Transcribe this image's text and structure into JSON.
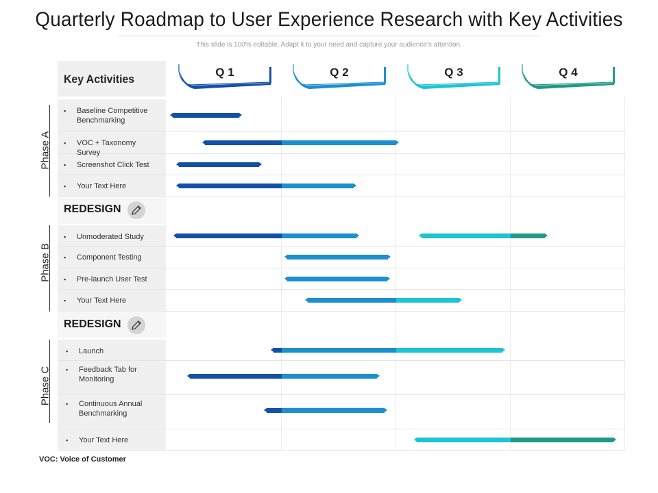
{
  "title": "Quarterly Roadmap to User Experience Research with Key Activities",
  "subtitle": "This slide is 100% editable. Adapt it to your need and capture your audience's attention.",
  "header": {
    "key_activities": "Key Activities"
  },
  "quarters": [
    {
      "label": "Q 1",
      "color": "#1550a8"
    },
    {
      "label": "Q 2",
      "color": "#1c8fd0"
    },
    {
      "label": "Q 3",
      "color": "#1cc4d4"
    },
    {
      "label": "Q 4",
      "color": "#1f9a85"
    }
  ],
  "redesign_label": "REDESIGN",
  "phases": [
    {
      "label": "Phase A"
    },
    {
      "label": "Phase B"
    },
    {
      "label": "Phase C"
    }
  ],
  "activities": [
    {
      "label": "Baseline Competitive Benchmarking",
      "start": 0.05,
      "end": 0.63
    },
    {
      "label": "VOC + Taxonomy Survey",
      "start": 0.33,
      "end": 2.0
    },
    {
      "label": "Screenshot Click Test",
      "start": 0.1,
      "end": 0.8
    },
    {
      "label": "Your Text Here",
      "start": 0.1,
      "end": 1.63
    },
    {
      "label": "Unmoderated Study",
      "start": 0.08,
      "end": 1.65,
      "start2": 2.22,
      "end2": 3.3
    },
    {
      "label": "Component Testing",
      "start": 1.05,
      "end": 1.93
    },
    {
      "label": "Pre-launch User Test",
      "start": 1.05,
      "end": 1.92
    },
    {
      "label": "Your Text Here",
      "start": 1.23,
      "end": 2.55
    },
    {
      "label": "Launch",
      "start": 0.93,
      "end": 2.93
    },
    {
      "label": "Feedback Tab for Monitoring",
      "start": 0.2,
      "end": 1.83
    },
    {
      "label": "Continuous Annual Benchmarking",
      "start": 0.87,
      "end": 1.9
    },
    {
      "label": "Your Text Here",
      "start": 2.18,
      "end": 3.9
    }
  ],
  "footnote": "VOC: Voice of Customer"
}
